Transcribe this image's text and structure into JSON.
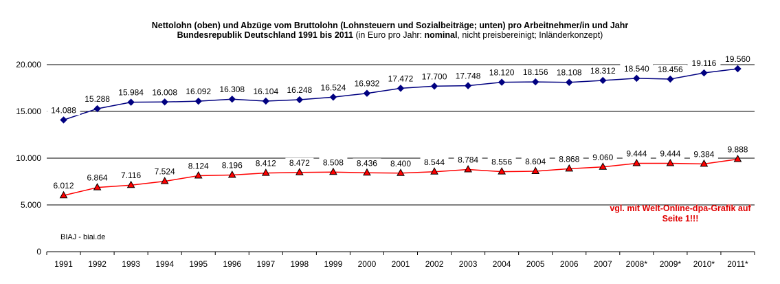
{
  "title": {
    "line1": "Nettolohn (oben) und Abzüge vom Bruttolohn (Lohnsteuern und Sozialbeiträge; unten) pro Arbeitnehmer/in und Jahr",
    "line2_bold": "Bundesrepublik Deutschland 1991 bis 2011",
    "line2_a": " (in Euro pro Jahr: ",
    "line2_nominal": "nominal",
    "line2_b": ", nicht preisbereinigt; Inländerkonzept)"
  },
  "note": {
    "line1": "vgl. mit Welt-Online-dpa-Grafik auf",
    "line2": "Seite 1!!!"
  },
  "source": "BIAJ - biai.de",
  "chart_data": {
    "type": "line",
    "categories": [
      "1991",
      "1992",
      "1993",
      "1994",
      "1995",
      "1996",
      "1997",
      "1998",
      "1999",
      "2000",
      "2001",
      "2002",
      "2003",
      "2004",
      "2005",
      "2006",
      "2007",
      "2008*",
      "2009*",
      "2010*",
      "2011*"
    ],
    "y_ticks": [
      "0",
      "5.000",
      "10.000",
      "15.000",
      "20.000"
    ],
    "ylim": [
      0,
      20000
    ],
    "grid": true,
    "series": [
      {
        "marker": "diamond",
        "color": "#000080",
        "values": [
          14088,
          15288,
          15984,
          16008,
          16092,
          16308,
          16104,
          16248,
          16524,
          16932,
          17472,
          17700,
          17748,
          18120,
          18156,
          18108,
          18312,
          18540,
          18456,
          19116,
          19560
        ],
        "labels": [
          "14.088",
          "15.288",
          "15.984",
          "16.008",
          "16.092",
          "16.308",
          "16.104",
          "16.248",
          "16.524",
          "16.932",
          "17.472",
          "17.700",
          "17.748",
          "18.120",
          "18.156",
          "18.108",
          "18.312",
          "18.540",
          "18.456",
          "19.116",
          "19.560"
        ]
      },
      {
        "marker": "triangle",
        "color": "#ff0000",
        "values": [
          6012,
          6864,
          7116,
          7524,
          8124,
          8196,
          8412,
          8472,
          8508,
          8436,
          8400,
          8544,
          8784,
          8556,
          8604,
          8868,
          9060,
          9444,
          9444,
          9384,
          9888
        ],
        "labels": [
          "6.012",
          "6.864",
          "7.116",
          "7.524",
          "8.124",
          "8.196",
          "8.412",
          "8.472",
          "8.508",
          "8.436",
          "8.400",
          "8.544",
          "8.784",
          "8.556",
          "8.604",
          "8.868",
          "9.060",
          "9.444",
          "9.444",
          "9.384",
          "9.888"
        ]
      }
    ]
  }
}
